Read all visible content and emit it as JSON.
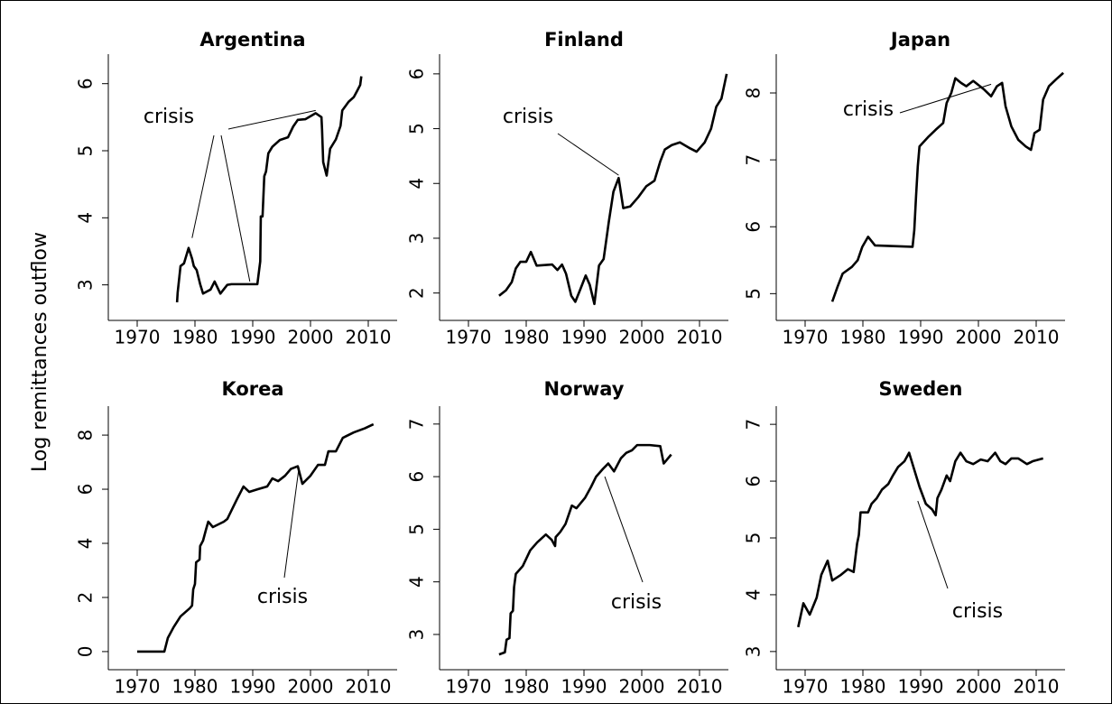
{
  "ylabel": "Log remittances outflow",
  "chart_data": [
    {
      "type": "line",
      "title": "Argentina",
      "color": "#000000",
      "x": [
        1976.9,
        1977.0,
        1977.5,
        1978.1,
        1978.9,
        1979.5,
        1979.8,
        1980.3,
        1980.9,
        1981.4,
        1982.7,
        1983.4,
        1984.4,
        1985.6,
        1986.3,
        1987.2,
        1988.4,
        1990.8,
        1991.3,
        1991.4,
        1991.7,
        1992.0,
        1992.3,
        1992.7,
        1993.4,
        1994.7,
        1996.1,
        1997.0,
        1997.8,
        1999.1,
        2000.9,
        2001.9,
        2002.0,
        2002.2,
        2002.8,
        2003.4,
        2004.4,
        2005.2,
        2005.5,
        2006.6,
        2007.5,
        2008.0,
        2008.6,
        2008.8
      ],
      "values": [
        2.74,
        2.88,
        3.28,
        3.32,
        3.55,
        3.39,
        3.28,
        3.22,
        3.01,
        2.87,
        2.93,
        3.05,
        2.87,
        3.0,
        3.01,
        3.01,
        3.01,
        3.01,
        3.35,
        4.02,
        4.02,
        4.62,
        4.69,
        4.96,
        5.06,
        5.16,
        5.2,
        5.36,
        5.46,
        5.47,
        5.56,
        5.5,
        5.32,
        4.83,
        4.63,
        5.03,
        5.17,
        5.37,
        5.6,
        5.73,
        5.8,
        5.88,
        5.98,
        6.11
      ],
      "xlim": [
        1965,
        2015
      ],
      "xticks": [
        1970,
        1980,
        1990,
        2000,
        2010
      ],
      "ylim": [
        2.47,
        6.44
      ],
      "yticks": [
        3,
        4,
        5,
        6
      ],
      "annotations": [
        {
          "text": "crisis",
          "targets": [
            [
              1979.5,
              3.7
            ],
            [
              1989.5,
              3.05
            ],
            [
              2000.9,
              5.6
            ]
          ]
        }
      ]
    },
    {
      "type": "line",
      "title": "Finland",
      "color": "#000000",
      "x": [
        1975.3,
        1976.5,
        1977.5,
        1978.2,
        1979,
        1980,
        1980.8,
        1981.8,
        1984.5,
        1985.4,
        1986.2,
        1986.9,
        1987.8,
        1988.5,
        1989.3,
        1990.3,
        1991,
        1991.8,
        1992.6,
        1993.4,
        1994.3,
        1995.1,
        1996,
        1996.8,
        1998,
        1999.4,
        2000.8,
        2002.2,
        2003.2,
        2004,
        2005.2,
        2006.6,
        2008.2,
        2009.5,
        2010.9,
        2012,
        2012.9,
        2013.8,
        2014.7
      ],
      "values": [
        1.95,
        2.05,
        2.2,
        2.45,
        2.57,
        2.57,
        2.75,
        2.5,
        2.52,
        2.42,
        2.52,
        2.35,
        1.95,
        1.84,
        2.05,
        2.32,
        2.15,
        1.8,
        2.5,
        2.62,
        3.3,
        3.85,
        4.1,
        3.55,
        3.58,
        3.75,
        3.95,
        4.05,
        4.4,
        4.62,
        4.7,
        4.75,
        4.65,
        4.58,
        4.75,
        5.0,
        5.4,
        5.55,
        6.0
      ],
      "xlim": [
        1965,
        2015
      ],
      "xticks": [
        1970,
        1980,
        1990,
        2000,
        2010
      ],
      "ylim": [
        1.5,
        6.36
      ],
      "yticks": [
        2,
        3,
        4,
        5,
        6
      ],
      "annotations": [
        {
          "text": "crisis",
          "targets": [
            [
              1996,
              4.15
            ]
          ]
        }
      ]
    },
    {
      "type": "line",
      "title": "Japan",
      "color": "#000000",
      "x": [
        1974.7,
        1975.6,
        1976.5,
        1978.1,
        1979.1,
        1979.9,
        1980.9,
        1982.1,
        1988.6,
        1988.9,
        1989.2,
        1989.5,
        1989.8,
        1991.4,
        1992.6,
        1993.9,
        1994.5,
        1995.3,
        1996,
        1997,
        1997.9,
        1999.1,
        2001,
        2002.2,
        2003.2,
        2004.1,
        2004.7,
        2005.7,
        2006.9,
        2008.2,
        2009.1,
        2009.7,
        2010.6,
        2011.2,
        2012.2,
        2013.4,
        2014.7
      ],
      "values": [
        4.88,
        5.1,
        5.3,
        5.4,
        5.5,
        5.7,
        5.85,
        5.72,
        5.7,
        5.95,
        6.45,
        6.9,
        7.2,
        7.35,
        7.45,
        7.55,
        7.85,
        8.0,
        8.22,
        8.15,
        8.1,
        8.18,
        8.05,
        7.95,
        8.1,
        8.15,
        7.8,
        7.5,
        7.3,
        7.2,
        7.15,
        7.4,
        7.45,
        7.9,
        8.1,
        8.2,
        8.3
      ],
      "xlim": [
        1965,
        2015
      ],
      "xticks": [
        1970,
        1980,
        1990,
        2000,
        2010
      ],
      "ylim": [
        4.6,
        8.58
      ],
      "yticks": [
        5,
        6,
        7,
        8
      ],
      "annotations": [
        {
          "text": "crisis",
          "targets": [
            [
              2002.2,
              8.13
            ]
          ]
        }
      ]
    },
    {
      "type": "line",
      "title": "Korea",
      "color": "#000000",
      "x": [
        1970,
        1974.7,
        1975.3,
        1976.3,
        1977.5,
        1979.1,
        1979.5,
        1979.7,
        1980,
        1980.2,
        1980.8,
        1980.9,
        1981.4,
        1981.9,
        1982.3,
        1983.1,
        1985,
        1985.6,
        1987.2,
        1988.4,
        1989.4,
        1990.9,
        1992.5,
        1993.4,
        1994.4,
        1995.6,
        1996.6,
        1997.8,
        1998.6,
        2000,
        2001.3,
        2002.5,
        2003.1,
        2004.4,
        2005.6,
        2007.5,
        2009.4,
        2010.9
      ],
      "values": [
        0,
        0,
        0.5,
        0.9,
        1.3,
        1.6,
        1.7,
        2.3,
        2.5,
        3.3,
        3.4,
        3.9,
        4.1,
        4.5,
        4.8,
        4.6,
        4.8,
        4.9,
        5.6,
        6.1,
        5.9,
        6.0,
        6.1,
        6.4,
        6.3,
        6.5,
        6.75,
        6.85,
        6.2,
        6.5,
        6.9,
        6.9,
        7.4,
        7.4,
        7.9,
        8.1,
        8.25,
        8.4
      ],
      "xlim": [
        1965,
        2015
      ],
      "xticks": [
        1970,
        1980,
        1990,
        2000,
        2010
      ],
      "ylim": [
        -0.67,
        9.07
      ],
      "yticks": [
        0,
        2,
        4,
        6,
        8
      ],
      "annotations": [
        {
          "text": "crisis",
          "targets": [
            [
              1998,
              6.8
            ]
          ]
        }
      ]
    },
    {
      "type": "line",
      "title": "Norway",
      "color": "#000000",
      "x": [
        1975.3,
        1976.3,
        1976.6,
        1977.1,
        1977.3,
        1977.7,
        1977.9,
        1978.2,
        1979.4,
        1980.7,
        1981.9,
        1983.4,
        1984.4,
        1985,
        1985.1,
        1985.9,
        1986.8,
        1987.9,
        1988.7,
        1990.2,
        1991.2,
        1992.1,
        1993.3,
        1994.2,
        1995.2,
        1996.4,
        1997.3,
        1998.3,
        1999.2,
        2001.4,
        2003.2,
        2003.8,
        2005.1
      ],
      "values": [
        2.62,
        2.66,
        2.9,
        2.93,
        3.4,
        3.45,
        3.9,
        4.15,
        4.3,
        4.6,
        4.75,
        4.9,
        4.8,
        4.68,
        4.85,
        4.95,
        5.1,
        5.45,
        5.4,
        5.6,
        5.8,
        6.0,
        6.15,
        6.25,
        6.1,
        6.35,
        6.45,
        6.5,
        6.6,
        6.6,
        6.58,
        6.25,
        6.42
      ],
      "xlim": [
        1965,
        2015
      ],
      "xticks": [
        1970,
        1980,
        1990,
        2000,
        2010
      ],
      "ylim": [
        2.33,
        7.34
      ],
      "yticks": [
        3,
        4,
        5,
        6,
        7
      ],
      "annotations": [
        {
          "text": "crisis",
          "targets": [
            [
              1993.6,
              6.0
            ]
          ]
        }
      ]
    },
    {
      "type": "line",
      "title": "Sweden",
      "color": "#000000",
      "x": [
        1968.8,
        1969.7,
        1970.8,
        1972,
        1972.8,
        1973.9,
        1974.7,
        1976.2,
        1977.4,
        1978.4,
        1979,
        1979.3,
        1979.6,
        1980.9,
        1981.5,
        1982.4,
        1983.3,
        1984.4,
        1985.2,
        1986.1,
        1987.2,
        1988,
        1988.9,
        1989.8,
        1990.9,
        1992,
        1992.6,
        1992.9,
        1993.6,
        1994.5,
        1995.1,
        1996,
        1996.9,
        1997.9,
        1999.1,
        2000.4,
        2001.6,
        2002.9,
        2003.8,
        2004.7,
        2005.7,
        2006.9,
        2008.4,
        2009.4,
        2011.2
      ],
      "values": [
        3.43,
        3.85,
        3.65,
        3.95,
        4.35,
        4.6,
        4.25,
        4.35,
        4.45,
        4.4,
        4.9,
        5.05,
        5.45,
        5.45,
        5.6,
        5.7,
        5.85,
        5.95,
        6.1,
        6.25,
        6.35,
        6.5,
        6.2,
        5.9,
        5.6,
        5.5,
        5.4,
        5.7,
        5.85,
        6.1,
        6.0,
        6.35,
        6.5,
        6.35,
        6.3,
        6.38,
        6.35,
        6.5,
        6.35,
        6.3,
        6.4,
        6.4,
        6.3,
        6.35,
        6.4
      ],
      "xlim": [
        1965,
        2015
      ],
      "xticks": [
        1970,
        1980,
        1990,
        2000,
        2010
      ],
      "ylim": [
        2.68,
        7.32
      ],
      "yticks": [
        3,
        4,
        5,
        6,
        7
      ],
      "annotations": [
        {
          "text": "crisis",
          "targets": [
            [
              1989.5,
              5.65
            ]
          ]
        }
      ]
    }
  ]
}
